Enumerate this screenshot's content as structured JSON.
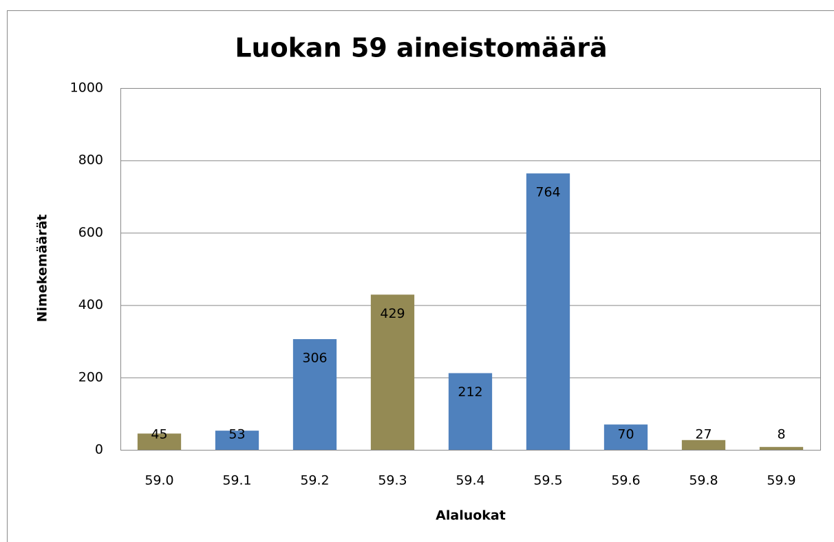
{
  "chart_data": {
    "type": "bar",
    "title": "Luokan 59 aineistomäärä",
    "x_label": "Alaluokat",
    "y_label": "Nimekemäärät",
    "categories": [
      "59.0",
      "59.1",
      "59.2",
      "59.3",
      "59.4",
      "59.5",
      "59.6",
      "59.8",
      "59.9"
    ],
    "values": [
      45,
      53,
      306,
      429,
      212,
      764,
      70,
      27,
      8
    ],
    "colors": [
      "#948a54",
      "#4f81bd",
      "#4f81bd",
      "#948a54",
      "#4f81bd",
      "#4f81bd",
      "#4f81bd",
      "#948a54",
      "#948a54"
    ],
    "ylim": [
      0,
      1000
    ],
    "yticks": [
      0,
      200,
      400,
      600,
      800,
      1000
    ],
    "grid": true
  }
}
